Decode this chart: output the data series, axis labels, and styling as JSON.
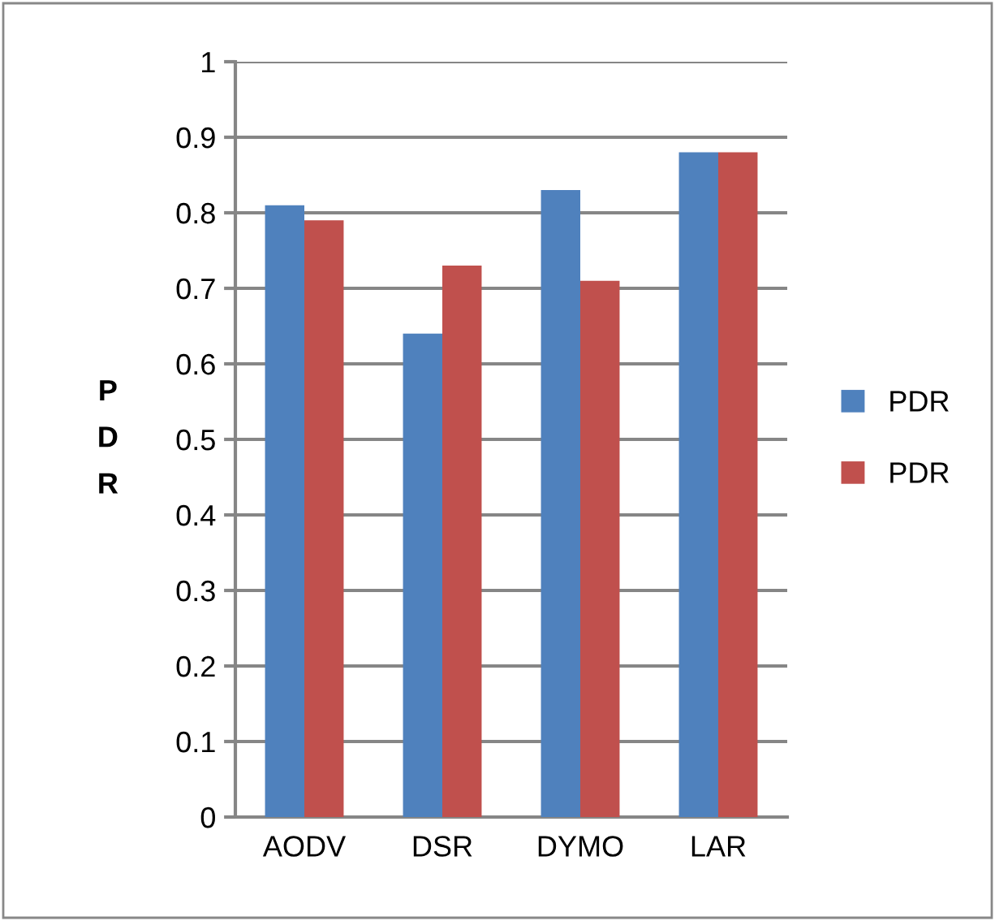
{
  "chart_data": {
    "type": "bar",
    "ylabel": "PDR",
    "categories": [
      "AODV",
      "DSR",
      "DYMO",
      "LAR"
    ],
    "series": [
      {
        "name": "PDR",
        "color": "#4f81bd",
        "values": [
          0.81,
          0.64,
          0.83,
          0.88
        ]
      },
      {
        "name": "PDR",
        "color": "#c0504d",
        "values": [
          0.79,
          0.73,
          0.71,
          0.88
        ]
      }
    ],
    "ylim": [
      0,
      1
    ],
    "yticks": [
      0,
      0.1,
      0.2,
      0.3,
      0.4,
      0.5,
      0.6,
      0.7,
      0.8,
      0.9,
      1
    ],
    "grid": "y",
    "legend": "right"
  }
}
